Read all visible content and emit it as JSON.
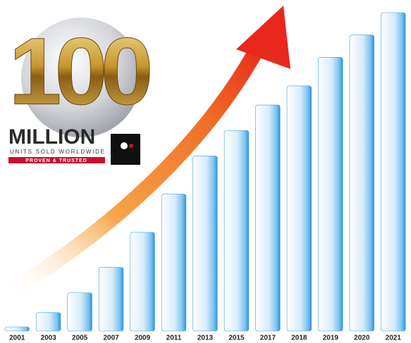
{
  "chart_data": {
    "type": "bar",
    "annotations": [
      "100",
      "MILLION",
      "UNITS SOLD WORLDWIDE",
      "PROVEN & TRUSTED"
    ],
    "categories": [
      "2001",
      "2003",
      "2005",
      "2007",
      "2009",
      "2011",
      "2013",
      "2015",
      "2017",
      "2018",
      "2019",
      "2020",
      "2021"
    ],
    "values": [
      1.3,
      5.8,
      12,
      20,
      31,
      43,
      55,
      63,
      71,
      77,
      86,
      93,
      100
    ],
    "color": "#3a9fe0",
    "ylim": [
      0,
      100
    ]
  }
}
